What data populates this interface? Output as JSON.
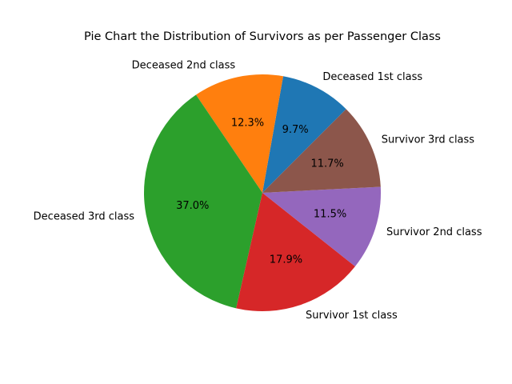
{
  "chart_data": {
    "type": "pie",
    "title": "Pie Chart the Distribution of Survivors as per Passenger Class",
    "start_angle_deg": 45,
    "direction": "counterclockwise",
    "slices": [
      {
        "label": "Deceased 1st class",
        "value": 9.7,
        "pct_label": "9.7%",
        "color": "#1f77b4"
      },
      {
        "label": "Deceased 2nd class",
        "value": 12.3,
        "pct_label": "12.3%",
        "color": "#ff7f0e"
      },
      {
        "label": "Deceased 3rd class",
        "value": 37.0,
        "pct_label": "37.0%",
        "color": "#2ca02c"
      },
      {
        "label": "Survivor 1st class",
        "value": 17.9,
        "pct_label": "17.9%",
        "color": "#d62728"
      },
      {
        "label": "Survivor 2nd class",
        "value": 11.5,
        "pct_label": "11.5%",
        "color": "#9467bd"
      },
      {
        "label": "Survivor 3rd class",
        "value": 11.7,
        "pct_label": "11.7%",
        "color": "#8c564b"
      }
    ]
  }
}
